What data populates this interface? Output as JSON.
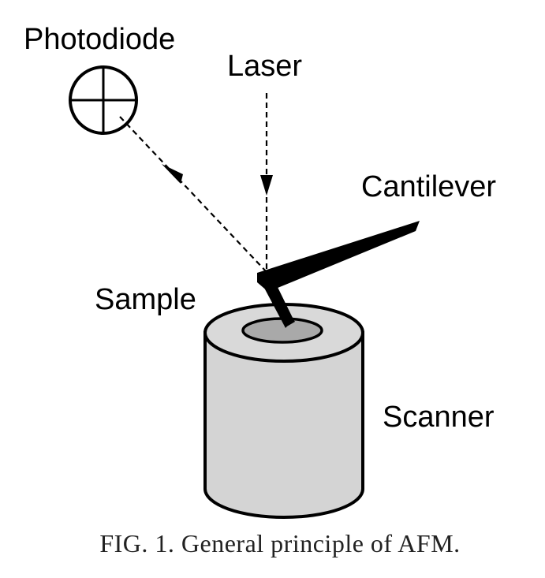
{
  "labels": {
    "photodiode": "Photodiode",
    "laser": "Laser",
    "cantilever": "Cantilever",
    "sample": "Sample",
    "scanner": "Scanner"
  },
  "caption": "FIG. 1. General principle of AFM.",
  "colors": {
    "ink": "#000000",
    "scanner_fill": "#d4d4d4",
    "sample_fill": "#a9a9a9",
    "background": "#ffffff"
  }
}
